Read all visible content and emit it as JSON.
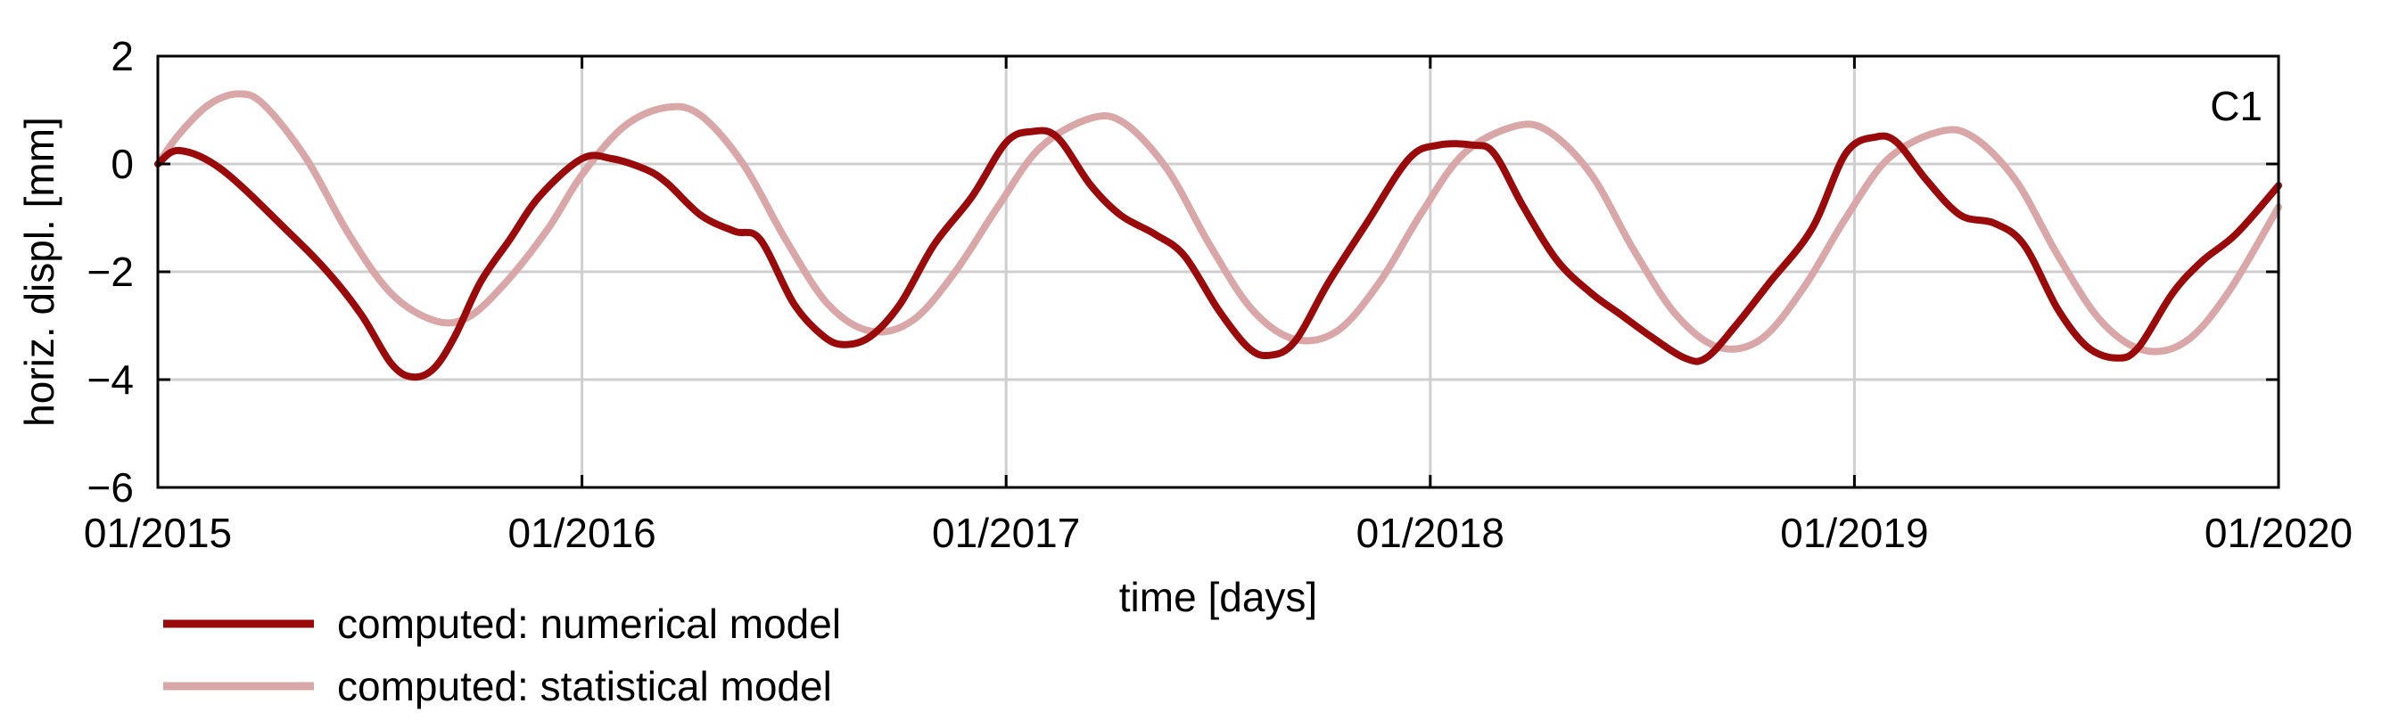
{
  "chart_data": {
    "type": "line",
    "title": "",
    "panel_label": "C1",
    "xlabel": "time [days]",
    "ylabel": "horiz. displ. [mm]",
    "xlim": [
      2015.0,
      2020.0
    ],
    "ylim": [
      -6,
      2
    ],
    "x_ticks": [
      {
        "value": 2015,
        "label": "01/2015"
      },
      {
        "value": 2016,
        "label": "01/2016"
      },
      {
        "value": 2017,
        "label": "01/2017"
      },
      {
        "value": 2018,
        "label": "01/2018"
      },
      {
        "value": 2019,
        "label": "01/2019"
      },
      {
        "value": 2020,
        "label": "01/2020"
      }
    ],
    "y_ticks": [
      {
        "value": 2,
        "label": "2"
      },
      {
        "value": 0,
        "label": "0"
      },
      {
        "value": -2,
        "label": "−2"
      },
      {
        "value": -4,
        "label": "−4"
      },
      {
        "value": -6,
        "label": "−6"
      }
    ],
    "grid": true,
    "legend_position": "bottom-left, outside plot",
    "series": [
      {
        "name": "computed: numerical model",
        "color": "#9b0a0a",
        "points": [
          [
            2015.0,
            0.0
          ],
          [
            2015.05,
            0.25
          ],
          [
            2015.15,
            -0.1
          ],
          [
            2015.3,
            -1.2
          ],
          [
            2015.4,
            -2.0
          ],
          [
            2015.48,
            -2.8
          ],
          [
            2015.55,
            -3.7
          ],
          [
            2015.6,
            -3.95
          ],
          [
            2015.65,
            -3.8
          ],
          [
            2015.7,
            -3.2
          ],
          [
            2015.76,
            -2.2
          ],
          [
            2015.83,
            -1.4
          ],
          [
            2015.9,
            -0.6
          ],
          [
            2016.0,
            0.1
          ],
          [
            2016.07,
            0.1
          ],
          [
            2016.15,
            -0.1
          ],
          [
            2016.2,
            -0.35
          ],
          [
            2016.28,
            -0.95
          ],
          [
            2016.36,
            -1.25
          ],
          [
            2016.42,
            -1.4
          ],
          [
            2016.5,
            -2.6
          ],
          [
            2016.57,
            -3.2
          ],
          [
            2016.62,
            -3.35
          ],
          [
            2016.68,
            -3.2
          ],
          [
            2016.75,
            -2.6
          ],
          [
            2016.83,
            -1.5
          ],
          [
            2016.92,
            -0.6
          ],
          [
            2017.0,
            0.4
          ],
          [
            2017.06,
            0.6
          ],
          [
            2017.12,
            0.5
          ],
          [
            2017.2,
            -0.4
          ],
          [
            2017.27,
            -0.95
          ],
          [
            2017.35,
            -1.3
          ],
          [
            2017.42,
            -1.7
          ],
          [
            2017.5,
            -2.7
          ],
          [
            2017.57,
            -3.4
          ],
          [
            2017.62,
            -3.55
          ],
          [
            2017.68,
            -3.3
          ],
          [
            2017.76,
            -2.2
          ],
          [
            2017.85,
            -1.1
          ],
          [
            2017.95,
            0.1
          ],
          [
            2018.02,
            0.35
          ],
          [
            2018.1,
            0.35
          ],
          [
            2018.15,
            0.2
          ],
          [
            2018.22,
            -0.8
          ],
          [
            2018.3,
            -1.8
          ],
          [
            2018.38,
            -2.4
          ],
          [
            2018.45,
            -2.8
          ],
          [
            2018.52,
            -3.2
          ],
          [
            2018.6,
            -3.6
          ],
          [
            2018.65,
            -3.6
          ],
          [
            2018.72,
            -3.0
          ],
          [
            2018.8,
            -2.2
          ],
          [
            2018.9,
            -1.2
          ],
          [
            2018.98,
            0.2
          ],
          [
            2019.05,
            0.5
          ],
          [
            2019.1,
            0.4
          ],
          [
            2019.17,
            -0.3
          ],
          [
            2019.25,
            -0.95
          ],
          [
            2019.33,
            -1.1
          ],
          [
            2019.4,
            -1.5
          ],
          [
            2019.48,
            -2.7
          ],
          [
            2019.55,
            -3.4
          ],
          [
            2019.62,
            -3.6
          ],
          [
            2019.67,
            -3.4
          ],
          [
            2019.75,
            -2.4
          ],
          [
            2019.82,
            -1.8
          ],
          [
            2019.9,
            -1.3
          ],
          [
            2020.0,
            -0.4
          ]
        ]
      },
      {
        "name": "computed: statistical model",
        "color": "#d9a7a7",
        "points": [
          [
            2015.0,
            0.0
          ],
          [
            2015.05,
            0.55
          ],
          [
            2015.12,
            1.1
          ],
          [
            2015.19,
            1.3
          ],
          [
            2015.25,
            1.1
          ],
          [
            2015.35,
            0.1
          ],
          [
            2015.45,
            -1.3
          ],
          [
            2015.55,
            -2.4
          ],
          [
            2015.65,
            -2.9
          ],
          [
            2015.73,
            -2.85
          ],
          [
            2015.82,
            -2.2
          ],
          [
            2015.92,
            -1.2
          ],
          [
            2016.0,
            -0.2
          ],
          [
            2016.1,
            0.7
          ],
          [
            2016.2,
            1.05
          ],
          [
            2016.28,
            0.9
          ],
          [
            2016.38,
            0.0
          ],
          [
            2016.48,
            -1.4
          ],
          [
            2016.58,
            -2.6
          ],
          [
            2016.68,
            -3.1
          ],
          [
            2016.78,
            -2.9
          ],
          [
            2016.88,
            -2.0
          ],
          [
            2016.98,
            -0.8
          ],
          [
            2017.08,
            0.3
          ],
          [
            2017.2,
            0.85
          ],
          [
            2017.28,
            0.75
          ],
          [
            2017.38,
            -0.1
          ],
          [
            2017.48,
            -1.5
          ],
          [
            2017.58,
            -2.7
          ],
          [
            2017.68,
            -3.25
          ],
          [
            2017.78,
            -3.1
          ],
          [
            2017.88,
            -2.2
          ],
          [
            2017.98,
            -0.9
          ],
          [
            2018.08,
            0.2
          ],
          [
            2018.2,
            0.7
          ],
          [
            2018.28,
            0.6
          ],
          [
            2018.38,
            -0.2
          ],
          [
            2018.48,
            -1.6
          ],
          [
            2018.58,
            -2.8
          ],
          [
            2018.68,
            -3.4
          ],
          [
            2018.78,
            -3.25
          ],
          [
            2018.88,
            -2.3
          ],
          [
            2018.98,
            -1.0
          ],
          [
            2019.08,
            0.1
          ],
          [
            2019.2,
            0.6
          ],
          [
            2019.28,
            0.5
          ],
          [
            2019.38,
            -0.3
          ],
          [
            2019.48,
            -1.7
          ],
          [
            2019.58,
            -2.9
          ],
          [
            2019.68,
            -3.45
          ],
          [
            2019.78,
            -3.3
          ],
          [
            2019.88,
            -2.4
          ],
          [
            2020.0,
            -0.8
          ]
        ]
      }
    ]
  }
}
